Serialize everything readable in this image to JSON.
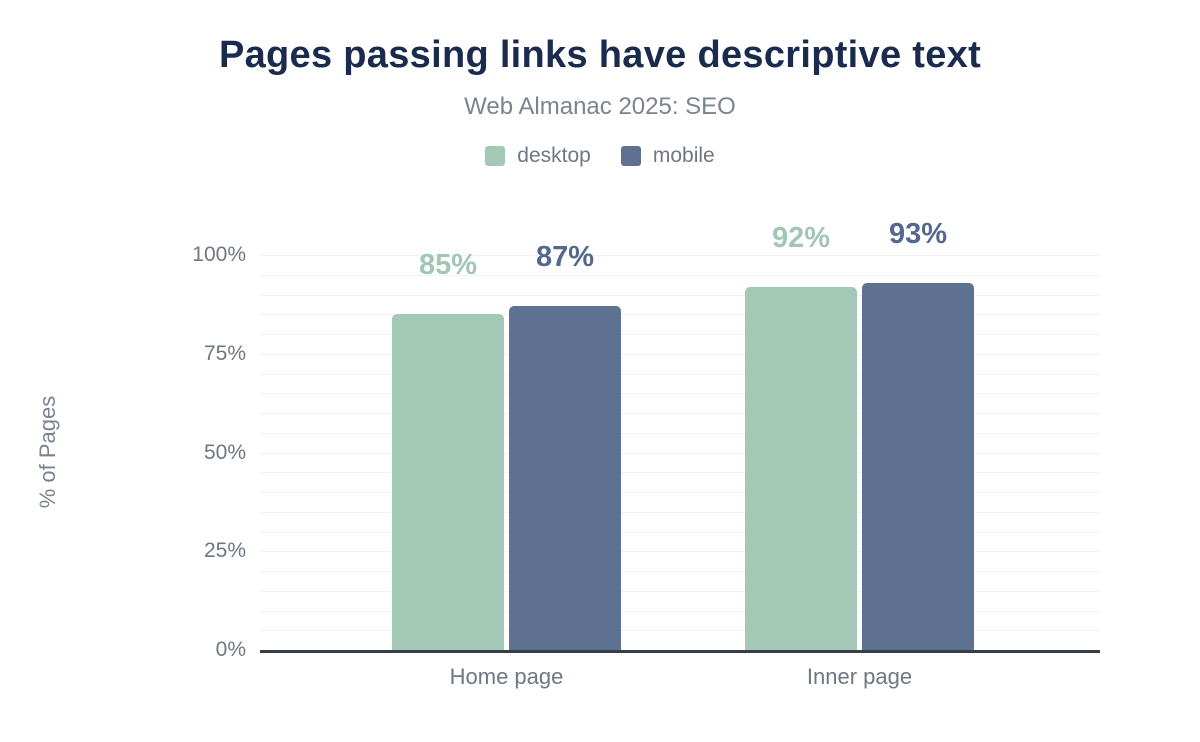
{
  "chart_data": {
    "type": "bar",
    "title": "Pages passing links have descriptive text",
    "subtitle": "Web Almanac 2025: SEO",
    "ylabel": "% of Pages",
    "categories": [
      "Home page",
      "Inner page"
    ],
    "series": [
      {
        "name": "desktop",
        "values": [
          85,
          92
        ],
        "color": "#a4c8b6",
        "label_color": "#a2c6b4"
      },
      {
        "name": "mobile",
        "values": [
          87,
          93
        ],
        "color": "#5e7190",
        "label_color": "#54678c"
      }
    ],
    "value_label_format": "{value}%",
    "yticks": [
      "0%",
      "25%",
      "50%",
      "75%",
      "100%"
    ],
    "ylim": [
      0,
      100
    ],
    "grid": "horizontal minor gridlines every 5%",
    "legend_position": "top"
  },
  "colors": {
    "background": "#ffffff",
    "title_text": "#1b2b4d",
    "muted_text": "#6f7781",
    "subtitle_text": "#7b838d",
    "axis_line": "#353e4a",
    "gridline": "#f2f2f2"
  }
}
